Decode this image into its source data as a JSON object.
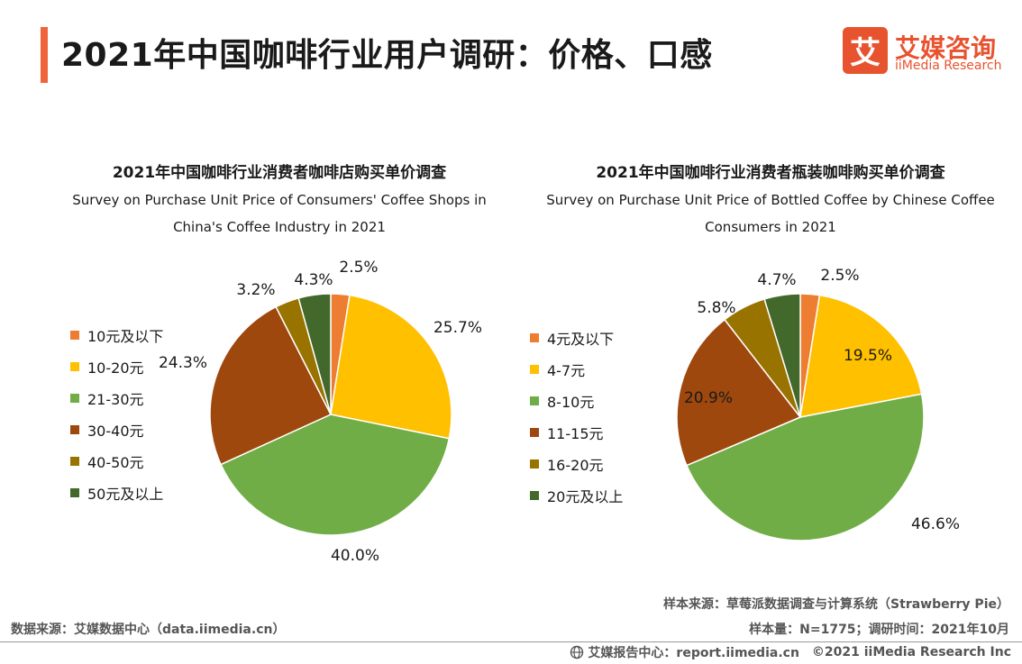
{
  "header": {
    "title": "2021年中国咖啡行业用户调研：价格、口感"
  },
  "logo": {
    "mark": "艾",
    "name_zh": "艾媒咨询",
    "name_en": "iiMedia Research"
  },
  "colors": {
    "accent": "#f0643c",
    "slices": [
      "#ed7d31",
      "#ffc000",
      "#70ad47",
      "#9e480e",
      "#997300",
      "#43682b"
    ]
  },
  "chart_data": [
    {
      "type": "pie",
      "title": "2021年中国咖啡行业消费者咖啡店购买单价调查",
      "subtitle": "Survey on Purchase Unit Price of Consumers' Coffee Shops in China's Coffee Industry in 2021",
      "categories": [
        "10元及以下",
        "10-20元",
        "21-30元",
        "30-40元",
        "40-50元",
        "50元及以上"
      ],
      "values": [
        2.5,
        25.7,
        40.0,
        24.3,
        3.2,
        4.3
      ],
      "labels": [
        "2.5%",
        "25.7%",
        "40.0%",
        "24.3%",
        "3.2%",
        "4.3%"
      ],
      "legend_position": "left"
    },
    {
      "type": "pie",
      "title": "2021年中国咖啡行业消费者瓶装咖啡购买单价调查",
      "subtitle": "Survey on Purchase Unit Price of Bottled Coffee by Chinese Coffee Consumers in 2021",
      "categories": [
        "4元及以下",
        "4-7元",
        "8-10元",
        "11-15元",
        "16-20元",
        "20元及以上"
      ],
      "values": [
        2.5,
        19.5,
        46.6,
        20.9,
        5.8,
        4.7
      ],
      "labels": [
        "2.5%",
        "19.5%",
        "46.6%",
        "20.9%",
        "5.8%",
        "4.7%"
      ],
      "legend_position": "left"
    }
  ],
  "footer": {
    "source_left": "数据来源：艾媒数据中心（data.iimedia.cn）",
    "sample_source": "样本来源：草莓派数据调查与计算系统（Strawberry Pie）",
    "sample_info": "样本量：N=1775；调研时间：2021年10月",
    "report_center": "艾媒报告中心：report.iimedia.cn",
    "copyright": "©2021  iiMedia Research  Inc"
  }
}
